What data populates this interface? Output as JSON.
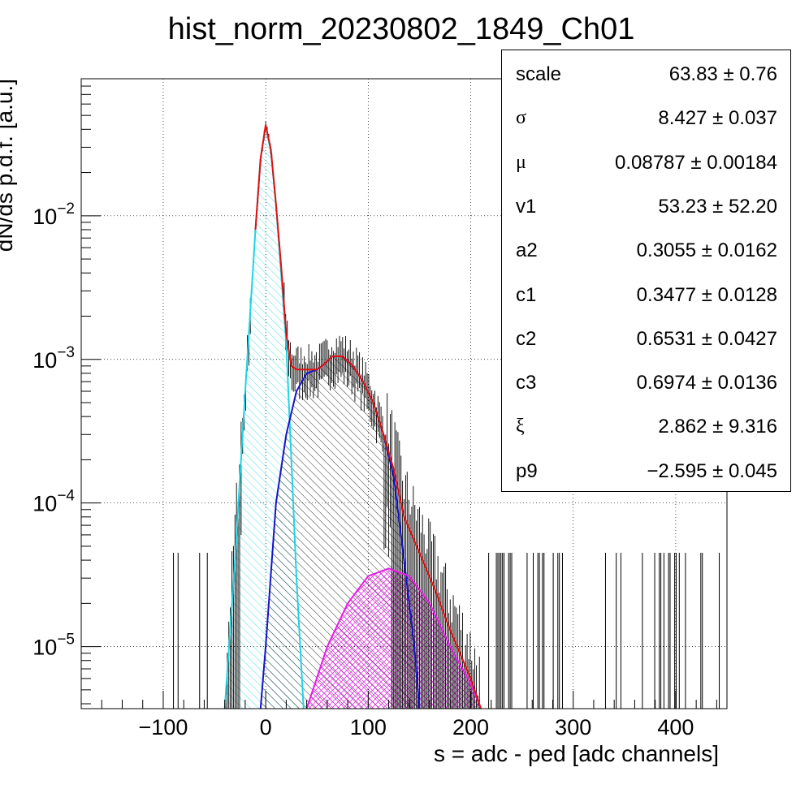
{
  "title": "hist_norm_20230802_1849_Ch01",
  "chart_data": {
    "type": "histogram",
    "xlabel": "s = adc - ped [adc channels]",
    "ylabel": "dN/ds p.d.f. [a.u.]",
    "xlim": [
      -180,
      450
    ],
    "ylim": [
      3.7e-06,
      0.09
    ],
    "yscale": "log",
    "grid": true,
    "x_ticks": [
      -100,
      0,
      100,
      200,
      300,
      400
    ],
    "x_tick_labels": [
      "−100",
      "0",
      "100",
      "200",
      "300",
      "400"
    ],
    "y_ticks": [
      {
        "value": 0.01,
        "base": "10",
        "exp": "−2"
      },
      {
        "value": 0.001,
        "base": "10",
        "exp": "−3"
      },
      {
        "value": 0.0001,
        "base": "10",
        "exp": "−4"
      },
      {
        "value": 1e-05,
        "base": "10",
        "exp": "−5"
      }
    ],
    "series": [
      {
        "component": "pedestal",
        "color": "#1ed4e6",
        "points": [
          [
            -40,
            3.5e-06
          ],
          [
            -30,
            4e-05
          ],
          [
            -20,
            0.0006
          ],
          [
            -10,
            0.008
          ],
          [
            -5,
            0.025
          ],
          [
            0,
            0.042
          ],
          [
            5,
            0.028
          ],
          [
            10,
            0.012
          ],
          [
            15,
            0.004
          ],
          [
            20,
            0.0013
          ],
          [
            25,
            0.0002
          ],
          [
            30,
            3e-05
          ],
          [
            37,
            3.7e-06
          ]
        ]
      },
      {
        "component": "single-pe",
        "color": "#1414c8",
        "points": [
          [
            -5,
            3.7e-06
          ],
          [
            0,
            1e-05
          ],
          [
            10,
            0.0001
          ],
          [
            20,
            0.0003
          ],
          [
            30,
            0.0006
          ],
          [
            40,
            0.0008
          ],
          [
            50,
            0.00085
          ],
          [
            55,
            0.0009
          ],
          [
            65,
            0.00105
          ],
          [
            75,
            0.00105
          ],
          [
            85,
            0.0009
          ],
          [
            95,
            0.0007
          ],
          [
            105,
            0.0005
          ],
          [
            115,
            0.0003
          ],
          [
            125,
            0.00015
          ],
          [
            135,
            4e-05
          ],
          [
            145,
            1e-05
          ],
          [
            150,
            3.7e-06
          ]
        ]
      },
      {
        "component": "multi-pe",
        "color": "#e61ee6",
        "points": [
          [
            40,
            3.7e-06
          ],
          [
            60,
            1e-05
          ],
          [
            80,
            2e-05
          ],
          [
            100,
            3.1e-05
          ],
          [
            120,
            3.5e-05
          ],
          [
            140,
            3.1e-05
          ],
          [
            160,
            2e-05
          ],
          [
            180,
            1e-05
          ],
          [
            200,
            5.5e-06
          ],
          [
            210,
            3.7e-06
          ]
        ]
      },
      {
        "component": "total",
        "color": "#e01010",
        "points": [
          [
            -10,
            0.008
          ],
          [
            -5,
            0.025
          ],
          [
            0,
            0.043
          ],
          [
            5,
            0.029
          ],
          [
            10,
            0.012
          ],
          [
            15,
            0.0045
          ],
          [
            20,
            0.0015
          ],
          [
            25,
            0.0009
          ],
          [
            30,
            0.00085
          ],
          [
            40,
            0.00085
          ],
          [
            50,
            0.00085
          ],
          [
            55,
            0.0009
          ],
          [
            65,
            0.00105
          ],
          [
            75,
            0.00105
          ],
          [
            85,
            0.0009
          ],
          [
            95,
            0.0007
          ],
          [
            105,
            0.0005
          ],
          [
            115,
            0.0003
          ],
          [
            125,
            0.00017
          ],
          [
            135,
            8e-05
          ],
          [
            150,
            4.5e-05
          ],
          [
            165,
            2.5e-05
          ],
          [
            180,
            1.3e-05
          ],
          [
            200,
            6e-06
          ],
          [
            210,
            3.7e-06
          ]
        ]
      }
    ]
  },
  "stats": [
    {
      "name": "scale",
      "value": "63.83 ± 0.76",
      "greek": false
    },
    {
      "name": "σ",
      "value": "8.427 ± 0.037",
      "greek": true
    },
    {
      "name": "μ",
      "value": "0.08787 ± 0.00184",
      "greek": true
    },
    {
      "name": "v1",
      "value": "53.23 ± 52.20",
      "greek": false
    },
    {
      "name": "a2",
      "value": "0.3055 ± 0.0162",
      "greek": false
    },
    {
      "name": "c1",
      "value": "0.3477 ± 0.0128",
      "greek": false
    },
    {
      "name": "c2",
      "value": "0.6531 ± 0.0427",
      "greek": false
    },
    {
      "name": "c3",
      "value": "0.6974 ± 0.0136",
      "greek": false
    },
    {
      "name": "ξ",
      "value": "2.862 ± 9.316",
      "greek": true
    },
    {
      "name": "p9",
      "value": "−2.595 ± 0.045",
      "greek": false
    }
  ]
}
